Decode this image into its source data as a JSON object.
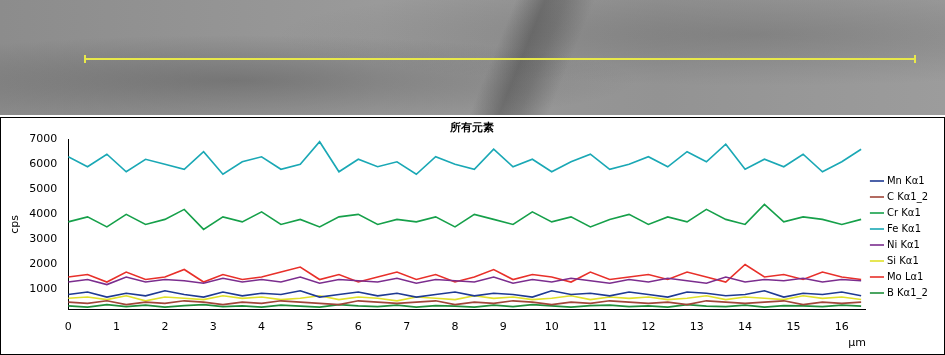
{
  "chart_data": {
    "type": "line",
    "title": "所有元素",
    "x_label": "μm",
    "y_label": "cps",
    "x": [
      0,
      0.4,
      0.8,
      1.2,
      1.6,
      2,
      2.4,
      2.8,
      3.2,
      3.6,
      4,
      4.4,
      4.8,
      5.2,
      5.6,
      6,
      6.4,
      6.8,
      7.2,
      7.6,
      8,
      8.4,
      8.8,
      9.2,
      9.6,
      10,
      10.4,
      10.8,
      11.2,
      11.6,
      12,
      12.4,
      12.8,
      13.2,
      13.6,
      14,
      14.4,
      14.8,
      15.2,
      15.6,
      16,
      16.4
    ],
    "xlim": [
      0,
      16.5
    ],
    "xticks": [
      0,
      1,
      2,
      3,
      4,
      5,
      6,
      7,
      8,
      9,
      10,
      11,
      12,
      13,
      14,
      15,
      16
    ],
    "ylim": [
      200,
      7000
    ],
    "yticks": [
      1000,
      2000,
      3000,
      4000,
      5000,
      6000,
      7000
    ],
    "grid": false,
    "legend": "right",
    "series": [
      {
        "name": "Mn Kα1",
        "color": "#1f3a93",
        "values": [
          800,
          900,
          700,
          850,
          750,
          950,
          800,
          700,
          900,
          750,
          850,
          800,
          950,
          700,
          800,
          900,
          750,
          850,
          700,
          800,
          900,
          750,
          850,
          800,
          700,
          950,
          800,
          850,
          750,
          900,
          800,
          700,
          900,
          850,
          750,
          800,
          950,
          700,
          850,
          800,
          900,
          750
        ]
      },
      {
        "name": "C Kα1_2",
        "color": "#a0463a",
        "values": [
          500,
          450,
          550,
          400,
          500,
          450,
          550,
          500,
          400,
          500,
          450,
          550,
          500,
          450,
          400,
          550,
          500,
          450,
          500,
          550,
          400,
          500,
          450,
          550,
          500,
          400,
          500,
          450,
          550,
          500,
          450,
          500,
          400,
          550,
          500,
          450,
          500,
          550,
          400,
          500,
          450,
          500
        ]
      },
      {
        "name": "Cr Kα1",
        "color": "#16a04a",
        "values": [
          3700,
          3900,
          3500,
          4000,
          3600,
          3800,
          4200,
          3400,
          3900,
          3700,
          4100,
          3600,
          3800,
          3500,
          3900,
          4000,
          3600,
          3800,
          3700,
          3900,
          3500,
          4000,
          3800,
          3600,
          4100,
          3700,
          3900,
          3500,
          3800,
          4000,
          3600,
          3900,
          3700,
          4200,
          3800,
          3600,
          4400,
          3700,
          3900,
          3800,
          3600,
          3800
        ]
      },
      {
        "name": "Fe Kα1",
        "color": "#1aa8b5",
        "values": [
          6300,
          5900,
          6400,
          5700,
          6200,
          6000,
          5800,
          6500,
          5600,
          6100,
          6300,
          5800,
          6000,
          6900,
          5700,
          6200,
          5900,
          6100,
          5600,
          6300,
          6000,
          5800,
          6600,
          5900,
          6200,
          5700,
          6100,
          6400,
          5800,
          6000,
          6300,
          5900,
          6500,
          6100,
          6800,
          5800,
          6200,
          5900,
          6400,
          5700,
          6100,
          6600
        ]
      },
      {
        "name": "Ni Kα1",
        "color": "#7b2d8e",
        "values": [
          1300,
          1400,
          1200,
          1500,
          1300,
          1400,
          1350,
          1250,
          1450,
          1300,
          1400,
          1300,
          1500,
          1250,
          1400,
          1350,
          1300,
          1450,
          1250,
          1400,
          1350,
          1300,
          1500,
          1250,
          1400,
          1300,
          1450,
          1350,
          1250,
          1400,
          1300,
          1450,
          1350,
          1250,
          1500,
          1300,
          1400,
          1350,
          1450,
          1300,
          1400,
          1350
        ]
      },
      {
        "name": "Si Kα1",
        "color": "#e0e02a",
        "values": [
          650,
          700,
          600,
          750,
          550,
          700,
          650,
          600,
          750,
          650,
          700,
          600,
          650,
          750,
          600,
          700,
          650,
          550,
          700,
          650,
          600,
          750,
          650,
          700,
          600,
          650,
          750,
          600,
          700,
          650,
          700,
          600,
          650,
          750,
          600,
          700,
          650,
          600,
          750,
          650,
          700,
          600
        ]
      },
      {
        "name": "Mo Lα1",
        "color": "#e8302a",
        "values": [
          1500,
          1600,
          1300,
          1700,
          1400,
          1500,
          1800,
          1300,
          1600,
          1400,
          1500,
          1700,
          1900,
          1400,
          1600,
          1300,
          1500,
          1700,
          1400,
          1600,
          1300,
          1500,
          1800,
          1400,
          1600,
          1500,
          1300,
          1700,
          1400,
          1500,
          1600,
          1400,
          1700,
          1500,
          1300,
          2000,
          1500,
          1600,
          1400,
          1700,
          1500,
          1400
        ]
      },
      {
        "name": "B Kα1_2",
        "color": "#1f8f3a",
        "values": [
          350,
          300,
          400,
          320,
          380,
          300,
          360,
          400,
          320,
          350,
          300,
          380,
          340,
          300,
          400,
          350,
          320,
          380,
          300,
          360,
          340,
          300,
          380,
          320,
          400,
          350,
          300,
          360,
          380,
          320,
          350,
          300,
          400,
          340,
          320,
          380,
          300,
          360,
          350,
          320,
          380,
          340
        ]
      }
    ]
  }
}
